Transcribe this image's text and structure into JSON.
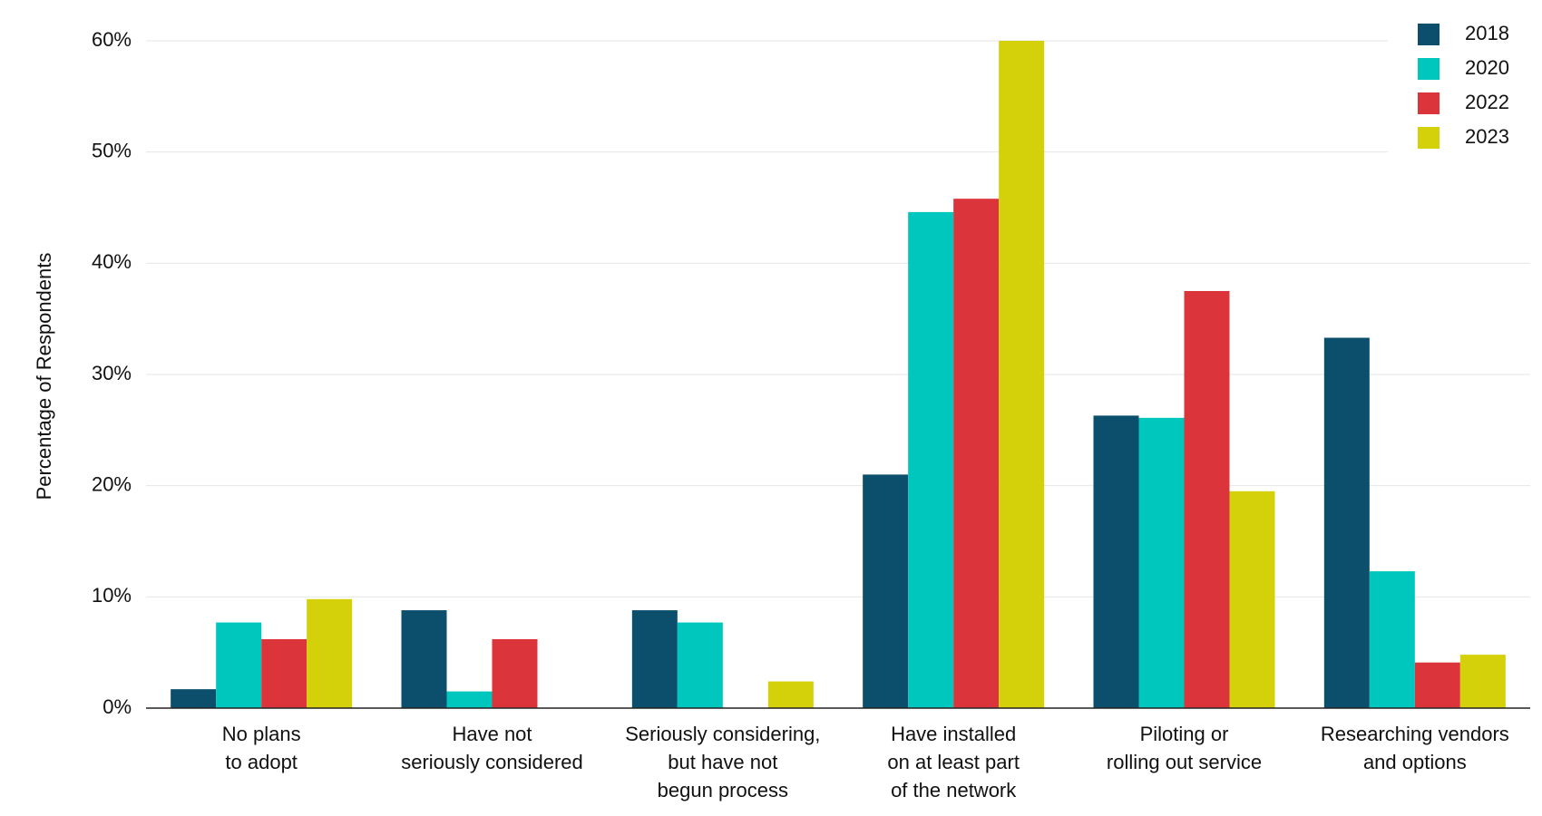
{
  "chart_data": {
    "type": "bar",
    "y_label": "Percentage of Respondents",
    "categories": [
      [
        "No plans",
        "to adopt"
      ],
      [
        "Have not",
        "seriously considered"
      ],
      [
        "Seriously considering,",
        "but have not",
        "begun process"
      ],
      [
        "Have installed",
        "on at least part",
        "of the network"
      ],
      [
        "Piloting or",
        "rolling out service"
      ],
      [
        "Researching vendors",
        "and options"
      ]
    ],
    "series": [
      {
        "name": "2018",
        "color": "#0b4f6c",
        "values": [
          1.7,
          8.8,
          8.8,
          21.0,
          26.3,
          33.3
        ]
      },
      {
        "name": "2020",
        "color": "#00c7bd",
        "values": [
          7.7,
          1.5,
          7.7,
          44.6,
          26.1,
          12.3
        ]
      },
      {
        "name": "2022",
        "color": "#dc343b",
        "values": [
          6.2,
          6.2,
          null,
          45.8,
          37.5,
          4.1
        ]
      },
      {
        "name": "2023",
        "color": "#d4d10b",
        "values": [
          9.8,
          null,
          2.4,
          60,
          19.5,
          4.8
        ]
      }
    ],
    "ylim": [
      0,
      60
    ],
    "yticks": [
      {
        "value": 0,
        "label": "0%"
      },
      {
        "value": 10,
        "label": "10%"
      },
      {
        "value": 20,
        "label": "20%"
      },
      {
        "value": 30,
        "label": "30%"
      },
      {
        "value": 40,
        "label": "40%"
      },
      {
        "value": 50,
        "label": "50%"
      },
      {
        "value": 60,
        "label": "60%"
      }
    ],
    "grid": true,
    "legend": "top-right"
  }
}
